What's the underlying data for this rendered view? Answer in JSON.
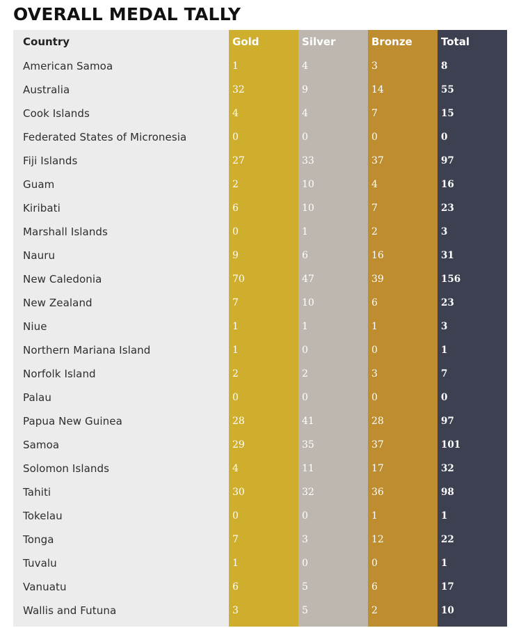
{
  "page": {
    "title": "OVERALL MEDAL TALLY"
  },
  "table": {
    "headers": {
      "country": "Country",
      "gold": "Gold",
      "silver": "Silver",
      "bronze": "Bronze",
      "total": "Total"
    },
    "colors": {
      "country_column": "#ececec",
      "gold_column": "#cfae2d",
      "silver_column": "#bdb7b0",
      "bronze_column": "#bd8d30",
      "total_column": "#3c4050"
    },
    "rows": [
      {
        "country": "American Samoa",
        "gold": "1",
        "silver": "4",
        "bronze": "3",
        "total": "8"
      },
      {
        "country": "Australia",
        "gold": "32",
        "silver": "9",
        "bronze": "14",
        "total": "55"
      },
      {
        "country": "Cook Islands",
        "gold": "4",
        "silver": "4",
        "bronze": "7",
        "total": "15"
      },
      {
        "country": "Federated States of Micronesia",
        "gold": "0",
        "silver": "0",
        "bronze": "0",
        "total": "0"
      },
      {
        "country": "Fiji Islands",
        "gold": "27",
        "silver": "33",
        "bronze": "37",
        "total": "97"
      },
      {
        "country": "Guam",
        "gold": "2",
        "silver": "10",
        "bronze": "4",
        "total": "16"
      },
      {
        "country": "Kiribati",
        "gold": "6",
        "silver": "10",
        "bronze": "7",
        "total": "23"
      },
      {
        "country": "Marshall Islands",
        "gold": "0",
        "silver": "1",
        "bronze": "2",
        "total": "3"
      },
      {
        "country": "Nauru",
        "gold": "9",
        "silver": "6",
        "bronze": "16",
        "total": "31"
      },
      {
        "country": "New Caledonia",
        "gold": "70",
        "silver": "47",
        "bronze": "39",
        "total": "156"
      },
      {
        "country": "New Zealand",
        "gold": "7",
        "silver": "10",
        "bronze": "6",
        "total": "23"
      },
      {
        "country": "Niue",
        "gold": "1",
        "silver": "1",
        "bronze": "1",
        "total": "3"
      },
      {
        "country": "Northern Mariana Island",
        "gold": "1",
        "silver": "0",
        "bronze": "0",
        "total": "1"
      },
      {
        "country": "Norfolk Island",
        "gold": "2",
        "silver": "2",
        "bronze": "3",
        "total": "7"
      },
      {
        "country": "Palau",
        "gold": "0",
        "silver": "0",
        "bronze": "0",
        "total": "0"
      },
      {
        "country": "Papua New Guinea",
        "gold": "28",
        "silver": "41",
        "bronze": "28",
        "total": "97"
      },
      {
        "country": "Samoa",
        "gold": "29",
        "silver": "35",
        "bronze": "37",
        "total": "101"
      },
      {
        "country": "Solomon Islands",
        "gold": "4",
        "silver": "11",
        "bronze": "17",
        "total": "32"
      },
      {
        "country": "Tahiti",
        "gold": "30",
        "silver": "32",
        "bronze": "36",
        "total": "98"
      },
      {
        "country": "Tokelau",
        "gold": "0",
        "silver": "0",
        "bronze": "1",
        "total": "1"
      },
      {
        "country": "Tonga",
        "gold": "7",
        "silver": "3",
        "bronze": "12",
        "total": "22"
      },
      {
        "country": "Tuvalu",
        "gold": "1",
        "silver": "0",
        "bronze": "0",
        "total": "1"
      },
      {
        "country": "Vanuatu",
        "gold": "6",
        "silver": "5",
        "bronze": "6",
        "total": "17"
      },
      {
        "country": "Wallis and Futuna",
        "gold": "3",
        "silver": "5",
        "bronze": "2",
        "total": "10"
      }
    ]
  }
}
